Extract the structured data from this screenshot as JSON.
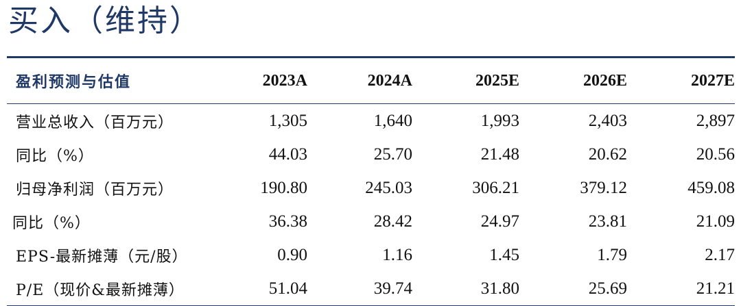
{
  "rating": "买入（维持）",
  "table": {
    "header": {
      "label": "盈利预测与估值",
      "years": [
        "2023A",
        "2024A",
        "2025E",
        "2026E",
        "2027E"
      ]
    },
    "rows": [
      {
        "label": "营业总收入（百万元）",
        "values": [
          "1,305",
          "1,640",
          "1,993",
          "2,403",
          "2,897"
        ]
      },
      {
        "label": "同比（%）",
        "values": [
          "44.03",
          "25.70",
          "21.48",
          "20.62",
          "20.56"
        ]
      },
      {
        "label": "归母净利润（百万元）",
        "values": [
          "190.80",
          "245.03",
          "306.21",
          "379.12",
          "459.08"
        ]
      },
      {
        "label": "同比（%）",
        "values": [
          "36.38",
          "28.42",
          "24.97",
          "23.81",
          "21.09"
        ]
      },
      {
        "label": "EPS-最新摊薄（元/股）",
        "values": [
          "0.90",
          "1.16",
          "1.45",
          "1.79",
          "2.17"
        ]
      },
      {
        "label": "P/E（现价&最新摊薄）",
        "values": [
          "51.04",
          "39.74",
          "31.80",
          "25.69",
          "21.21"
        ]
      }
    ]
  }
}
